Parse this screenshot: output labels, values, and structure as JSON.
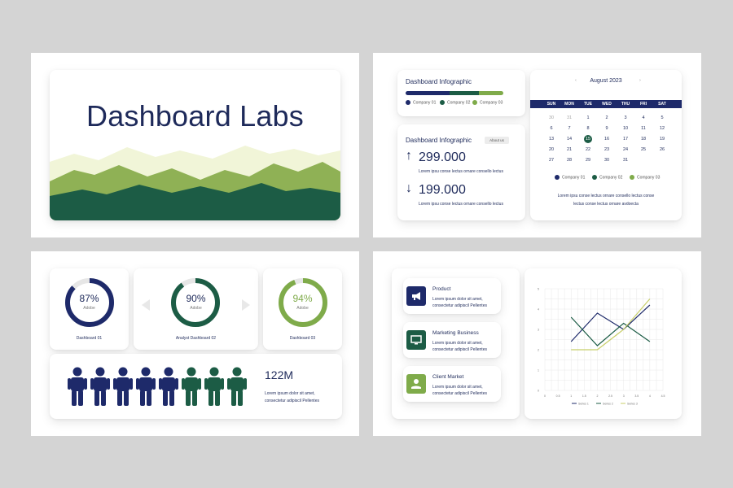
{
  "colors": {
    "navy": "#1e2a6a",
    "dark_green": "#1c5c45",
    "green": "#7fab4a",
    "light_green": "#f1f5d8",
    "gray": "#e6e6e6",
    "yellow": "#c8cf6a"
  },
  "slide1": {
    "title": "Dashboard Labs"
  },
  "slide2": {
    "infographic1": {
      "title": "Dashboard Infographic",
      "legend": [
        "Company 01",
        "Company 02",
        "Company 03"
      ]
    },
    "infographic2": {
      "title": "Dashboard Infographic",
      "button": "About us",
      "up_value": "299.000",
      "up_text": "Lorem ipsu conse lectus ornare consello lectus",
      "down_value": "199.000",
      "down_text": "Lorem ipsu conse lectus ornare consello lectus"
    },
    "calendar": {
      "month": "August 2023",
      "prev_icon": "‹",
      "next_icon": "›",
      "weekdays": [
        "SUN",
        "MON",
        "TUE",
        "WED",
        "THU",
        "FRI",
        "SAT"
      ],
      "weeks": [
        [
          "30",
          "31",
          "1",
          "2",
          "3",
          "4",
          "5"
        ],
        [
          "6",
          "7",
          "8",
          "9",
          "10",
          "11",
          "12"
        ],
        [
          "13",
          "14",
          "15",
          "16",
          "17",
          "18",
          "19"
        ],
        [
          "20",
          "21",
          "22",
          "23",
          "24",
          "25",
          "26"
        ],
        [
          "27",
          "28",
          "29",
          "30",
          "31",
          "",
          ""
        ]
      ],
      "selected_day": "15",
      "legend": [
        "Company 01",
        "Company 02",
        "Company 03"
      ],
      "caption_line1": "Lorem ipsu conse lectus ornare consello lectus conse",
      "caption_line2": "lectus conse lectus ornare avdoecta"
    }
  },
  "slide3": {
    "donuts": [
      {
        "value": 87,
        "percent": "87%",
        "sub": "Adobe",
        "caption": "Dashboard 01"
      },
      {
        "value": 90,
        "percent": "90%",
        "sub": "Adobe",
        "caption": "Analyst Dashboard 02"
      },
      {
        "value": 94,
        "percent": "94%",
        "sub": "Adobe",
        "caption": "Dashboard 03"
      }
    ],
    "people": {
      "total": 8,
      "navy_count": 5,
      "value": "122M",
      "text_line1": "Lorem ipsum dolor sit amet,",
      "text_line2": "consectetur adipiscil Pellentes"
    }
  },
  "slide4": {
    "features": [
      {
        "icon": "megaphone-icon",
        "title": "Product",
        "line1": "Lorem ipsum dolor sit amet,",
        "line2": "consectetur adipiscil Pellentes"
      },
      {
        "icon": "monitor-icon",
        "title": "Marketing Business",
        "line1": "Lorem ipsum dolor sit amet,",
        "line2": "consectetur adipiscil Pellentes"
      },
      {
        "icon": "hand-location-icon",
        "title": "Client Market",
        "line1": "Lorem ipsum dolor sit amet,",
        "line2": "consectetur adipiscil Pellentes"
      }
    ]
  },
  "chart_data": {
    "type": "line",
    "x": [
      1,
      2,
      3,
      4
    ],
    "x_ticks": [
      "0",
      "0.5",
      "1",
      "1.5",
      "2",
      "2.5",
      "3",
      "3.5",
      "4",
      "4.5"
    ],
    "y_ticks": [
      "0",
      "1",
      "2",
      "3",
      "4",
      "5"
    ],
    "xlim": [
      0,
      4.5
    ],
    "ylim": [
      0,
      5
    ],
    "grid": true,
    "legend_position": "bottom",
    "series": [
      {
        "name": "Series 1",
        "values": [
          2.4,
          3.8,
          3.0,
          4.2
        ],
        "color": "#1e2a6a"
      },
      {
        "name": "Series 2",
        "values": [
          3.6,
          2.2,
          3.3,
          2.4
        ],
        "color": "#1c5c45"
      },
      {
        "name": "Series 3",
        "values": [
          2.0,
          2.0,
          3.0,
          4.5
        ],
        "color": "#c8cf6a"
      }
    ]
  }
}
